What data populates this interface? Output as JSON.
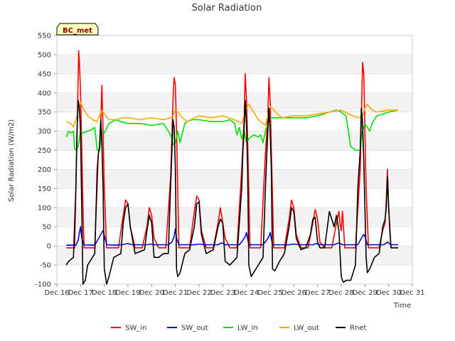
{
  "chart_data": {
    "type": "line",
    "title": "Solar Radiation",
    "xlabel": "Time",
    "ylabel": "Solar Radiation (W/m2)",
    "badge": "BC_met",
    "ylim": [
      -100,
      550
    ],
    "xlim": [
      16,
      31
    ],
    "yticks": [
      -100,
      -50,
      0,
      50,
      100,
      150,
      200,
      250,
      300,
      350,
      400,
      450,
      500,
      550
    ],
    "xticks": [
      16,
      17,
      18,
      19,
      20,
      21,
      22,
      23,
      24,
      25,
      26,
      27,
      28,
      29,
      30,
      31
    ],
    "xtick_labels": [
      "Dec 16",
      "Dec 17",
      "Dec 18",
      "Dec 19",
      "Dec 20",
      "Dec 21",
      "Dec 22",
      "Dec 23",
      "Dec 24",
      "Dec 25",
      "Dec 26",
      "Dec 27",
      "Dec 28",
      "Dec 29",
      "Dec 30",
      "Dec 31"
    ],
    "legend_position": "bottom-center",
    "series": [
      {
        "name": "SW_in",
        "color": "#ff0000",
        "x": [
          16.4,
          16.75,
          16.82,
          16.88,
          16.92,
          16.95,
          17.0,
          17.05,
          17.1,
          17.15,
          17.3,
          17.6,
          17.75,
          17.82,
          17.9,
          17.95,
          18.0,
          18.1,
          18.3,
          18.6,
          18.8,
          18.9,
          19.0,
          19.1,
          19.3,
          19.6,
          19.8,
          19.9,
          20.0,
          20.1,
          20.3,
          20.6,
          20.8,
          20.9,
          20.95,
          21.0,
          21.05,
          21.15,
          21.3,
          21.6,
          21.8,
          21.9,
          22.0,
          22.1,
          22.3,
          22.6,
          22.8,
          22.9,
          23.0,
          23.1,
          23.3,
          23.6,
          23.8,
          23.9,
          23.95,
          24.0,
          24.05,
          24.15,
          24.3,
          24.6,
          24.8,
          24.9,
          24.95,
          25.0,
          25.05,
          25.15,
          25.3,
          25.6,
          25.8,
          25.9,
          26.0,
          26.1,
          26.3,
          26.6,
          26.8,
          26.9,
          27.0,
          27.1,
          27.3,
          27.6,
          27.8,
          27.9,
          27.95,
          28.0,
          28.05,
          28.15,
          28.3,
          28.6,
          28.8,
          28.9,
          28.95,
          29.0,
          29.05,
          29.15,
          29.3,
          29.6,
          29.75,
          29.85,
          29.9,
          29.95,
          30.0,
          30.05,
          30.1,
          30.2,
          30.4
        ],
        "y": [
          -5,
          -5,
          200,
          380,
          510,
          480,
          400,
          250,
          100,
          -5,
          -5,
          -5,
          240,
          260,
          420,
          300,
          150,
          -5,
          -5,
          -5,
          80,
          120,
          110,
          50,
          -5,
          -5,
          50,
          100,
          80,
          20,
          -5,
          -5,
          180,
          380,
          440,
          420,
          300,
          -5,
          -5,
          -5,
          90,
          130,
          120,
          40,
          -5,
          -5,
          60,
          100,
          60,
          20,
          -5,
          -5,
          200,
          330,
          450,
          380,
          280,
          -5,
          -5,
          -5,
          240,
          340,
          440,
          380,
          250,
          -5,
          -5,
          -5,
          70,
          120,
          100,
          30,
          -5,
          -5,
          60,
          95,
          70,
          10,
          -5,
          -5,
          60,
          90,
          60,
          40,
          90,
          -5,
          -5,
          -5,
          200,
          480,
          450,
          300,
          150,
          -5,
          -5,
          -5,
          40,
          60,
          120,
          200,
          100,
          50,
          -5,
          -5,
          -5
        ]
      },
      {
        "name": "SW_out",
        "color": "#0000cc",
        "x": [
          16.4,
          16.8,
          16.9,
          16.95,
          17.0,
          17.05,
          17.15,
          17.6,
          17.85,
          17.95,
          18.1,
          18.5,
          18.9,
          19.0,
          19.2,
          19.8,
          19.95,
          20.1,
          20.7,
          20.85,
          20.95,
          21.0,
          21.05,
          21.15,
          21.8,
          22.0,
          22.2,
          22.8,
          22.95,
          23.1,
          23.7,
          23.85,
          23.95,
          24.0,
          24.1,
          24.7,
          24.85,
          24.95,
          25.0,
          25.1,
          25.8,
          26.0,
          26.2,
          26.8,
          26.95,
          27.1,
          27.7,
          27.9,
          28.05,
          28.7,
          28.85,
          28.95,
          29.0,
          29.1,
          29.8,
          29.95,
          30.1,
          30.4
        ],
        "y": [
          2,
          2,
          15,
          35,
          50,
          20,
          3,
          2,
          30,
          40,
          3,
          2,
          5,
          6,
          3,
          3,
          5,
          3,
          3,
          10,
          25,
          45,
          20,
          3,
          3,
          5,
          3,
          3,
          8,
          3,
          3,
          15,
          25,
          35,
          3,
          3,
          15,
          25,
          35,
          3,
          3,
          5,
          3,
          3,
          6,
          3,
          3,
          8,
          3,
          3,
          20,
          30,
          25,
          3,
          3,
          10,
          3,
          3
        ]
      },
      {
        "name": "LW_in",
        "color": "#00dd00",
        "x": [
          16.4,
          16.5,
          16.6,
          16.7,
          16.75,
          16.8,
          16.9,
          17.0,
          17.1,
          17.3,
          17.5,
          17.6,
          17.7,
          17.8,
          17.9,
          18.0,
          18.2,
          18.5,
          18.7,
          19.0,
          19.5,
          20.0,
          20.5,
          20.7,
          20.8,
          20.9,
          21.0,
          21.1,
          21.2,
          21.4,
          21.5,
          21.7,
          22.0,
          22.5,
          23.0,
          23.3,
          23.5,
          23.6,
          23.7,
          23.8,
          23.9,
          24.0,
          24.1,
          24.3,
          24.5,
          24.6,
          24.7,
          24.8,
          24.9,
          25.0,
          25.2,
          25.5,
          26.0,
          26.5,
          27.0,
          27.5,
          27.8,
          28.0,
          28.2,
          28.4,
          28.5,
          28.6,
          28.8,
          28.9,
          29.0,
          29.1,
          29.2,
          29.3,
          29.5,
          30.0,
          30.4
        ],
        "y": [
          285,
          300,
          295,
          300,
          255,
          250,
          260,
          300,
          295,
          300,
          305,
          310,
          250,
          250,
          300,
          295,
          320,
          330,
          325,
          320,
          320,
          315,
          320,
          300,
          290,
          265,
          270,
          300,
          270,
          320,
          325,
          330,
          330,
          325,
          325,
          330,
          320,
          290,
          310,
          280,
          300,
          270,
          280,
          290,
          285,
          290,
          270,
          300,
          320,
          335,
          335,
          335,
          335,
          335,
          340,
          350,
          355,
          350,
          340,
          260,
          255,
          250,
          250,
          300,
          320,
          310,
          300,
          320,
          340,
          350,
          355
        ]
      },
      {
        "name": "LW_out",
        "color": "#ffa500",
        "x": [
          16.4,
          16.6,
          16.7,
          16.8,
          16.9,
          17.0,
          17.1,
          17.3,
          17.5,
          17.7,
          17.8,
          17.9,
          18.0,
          18.2,
          18.5,
          18.8,
          19.0,
          19.5,
          20.0,
          20.5,
          20.8,
          20.9,
          21.0,
          21.1,
          21.3,
          21.5,
          21.8,
          22.0,
          22.5,
          23.0,
          23.5,
          23.8,
          23.9,
          24.0,
          24.1,
          24.3,
          24.5,
          24.8,
          24.9,
          25.0,
          25.1,
          25.3,
          25.5,
          26.0,
          26.5,
          27.0,
          27.5,
          28.0,
          28.3,
          28.7,
          28.9,
          29.0,
          29.1,
          29.3,
          29.5,
          30.0,
          30.4
        ],
        "y": [
          325,
          320,
          310,
          330,
          355,
          375,
          360,
          340,
          330,
          325,
          340,
          355,
          345,
          330,
          330,
          335,
          335,
          330,
          335,
          330,
          335,
          340,
          355,
          350,
          335,
          325,
          335,
          340,
          335,
          340,
          330,
          320,
          340,
          360,
          370,
          350,
          330,
          315,
          340,
          365,
          360,
          345,
          335,
          340,
          340,
          345,
          350,
          355,
          345,
          335,
          340,
          360,
          370,
          355,
          350,
          355,
          355
        ]
      },
      {
        "name": "Rnet",
        "color": "#000000",
        "x": [
          16.4,
          16.5,
          16.7,
          16.8,
          16.85,
          16.9,
          16.95,
          17.0,
          17.05,
          17.1,
          17.2,
          17.3,
          17.5,
          17.6,
          17.7,
          17.75,
          17.8,
          17.85,
          17.9,
          17.95,
          18.0,
          18.1,
          18.2,
          18.4,
          18.7,
          18.8,
          18.9,
          19.0,
          19.1,
          19.3,
          19.5,
          19.7,
          19.8,
          19.9,
          20.0,
          20.1,
          20.3,
          20.5,
          20.7,
          20.8,
          20.85,
          20.9,
          20.95,
          21.0,
          21.05,
          21.1,
          21.2,
          21.4,
          21.6,
          21.8,
          21.9,
          22.0,
          22.1,
          22.3,
          22.6,
          22.8,
          22.9,
          23.0,
          23.1,
          23.3,
          23.6,
          23.8,
          23.85,
          23.9,
          23.95,
          24.0,
          24.05,
          24.1,
          24.2,
          24.4,
          24.7,
          24.8,
          24.85,
          24.9,
          24.95,
          25.0,
          25.05,
          25.1,
          25.2,
          25.4,
          25.6,
          25.8,
          25.9,
          26.0,
          26.1,
          26.3,
          26.5,
          26.7,
          26.8,
          26.9,
          27.0,
          27.1,
          27.3,
          27.5,
          27.7,
          27.8,
          27.9,
          28.0,
          28.05,
          28.1,
          28.2,
          28.4,
          28.6,
          28.7,
          28.8,
          28.85,
          28.9,
          28.95,
          29.0,
          29.05,
          29.1,
          29.2,
          29.4,
          29.6,
          29.75,
          29.85,
          29.9,
          29.95,
          30.0,
          30.05,
          30.1,
          30.2,
          30.4
        ],
        "y": [
          -50,
          -40,
          -30,
          150,
          300,
          380,
          360,
          300,
          100,
          -100,
          -90,
          -50,
          -30,
          -20,
          200,
          240,
          260,
          330,
          270,
          150,
          -60,
          -100,
          -80,
          -30,
          -20,
          60,
          100,
          110,
          50,
          -20,
          -15,
          -10,
          40,
          80,
          60,
          -30,
          -30,
          -20,
          -20,
          160,
          240,
          330,
          310,
          200,
          -60,
          -80,
          -70,
          -20,
          -10,
          50,
          110,
          115,
          30,
          -20,
          -10,
          50,
          70,
          60,
          -40,
          -50,
          -30,
          150,
          250,
          300,
          380,
          320,
          200,
          -50,
          -80,
          -60,
          -30,
          150,
          230,
          300,
          360,
          300,
          200,
          -60,
          -65,
          -40,
          -20,
          50,
          100,
          90,
          20,
          -10,
          -5,
          30,
          70,
          75,
          10,
          -5,
          -5,
          90,
          50,
          80,
          40,
          -80,
          -90,
          -95,
          -90,
          -90,
          -50,
          150,
          250,
          360,
          320,
          220,
          100,
          -30,
          -70,
          -60,
          -30,
          -20,
          50,
          70,
          100,
          180,
          100,
          40,
          -5,
          -5,
          -5
        ]
      }
    ]
  }
}
